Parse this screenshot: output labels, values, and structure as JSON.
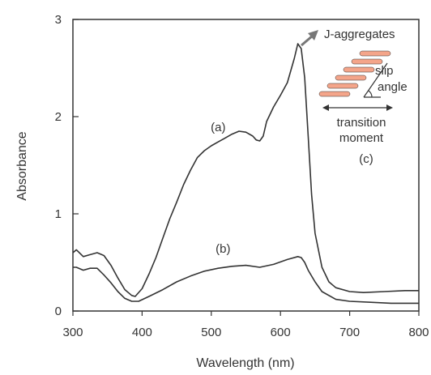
{
  "chart_data": {
    "type": "line",
    "xlabel": "Wavelength (nm)",
    "ylabel": "Absorbance",
    "xlim": [
      300,
      800
    ],
    "ylim": [
      0,
      3
    ],
    "x_ticks": [
      "300",
      "400",
      "500",
      "600",
      "700",
      "800"
    ],
    "y_ticks": [
      "0",
      "1",
      "2",
      "3"
    ],
    "grid": false,
    "series": [
      {
        "name": "(a)",
        "label_at": [
          510,
          1.85
        ],
        "x": [
          300,
          305,
          315,
          325,
          335,
          345,
          355,
          365,
          375,
          385,
          390,
          400,
          410,
          420,
          430,
          440,
          450,
          460,
          470,
          480,
          490,
          500,
          510,
          520,
          530,
          540,
          550,
          560,
          565,
          570,
          575,
          580,
          590,
          600,
          610,
          620,
          625,
          630,
          635,
          640,
          645,
          650,
          660,
          670,
          680,
          700,
          720,
          750,
          780,
          800
        ],
        "y": [
          0.6,
          0.63,
          0.56,
          0.58,
          0.6,
          0.57,
          0.47,
          0.34,
          0.22,
          0.16,
          0.15,
          0.23,
          0.38,
          0.55,
          0.75,
          0.95,
          1.12,
          1.3,
          1.45,
          1.58,
          1.65,
          1.7,
          1.74,
          1.78,
          1.82,
          1.85,
          1.84,
          1.8,
          1.76,
          1.75,
          1.8,
          1.95,
          2.1,
          2.22,
          2.35,
          2.6,
          2.75,
          2.7,
          2.4,
          1.8,
          1.2,
          0.8,
          0.45,
          0.3,
          0.24,
          0.2,
          0.19,
          0.2,
          0.21,
          0.21
        ]
      },
      {
        "name": "(b)",
        "label_at": [
          517,
          0.6
        ],
        "x": [
          300,
          305,
          315,
          325,
          335,
          345,
          355,
          365,
          375,
          385,
          395,
          410,
          430,
          450,
          470,
          490,
          510,
          530,
          550,
          570,
          590,
          610,
          625,
          630,
          635,
          640,
          650,
          660,
          680,
          700,
          730,
          760,
          800
        ],
        "y": [
          0.45,
          0.45,
          0.42,
          0.44,
          0.44,
          0.37,
          0.29,
          0.2,
          0.13,
          0.1,
          0.1,
          0.15,
          0.22,
          0.3,
          0.36,
          0.41,
          0.44,
          0.46,
          0.47,
          0.45,
          0.48,
          0.53,
          0.56,
          0.55,
          0.5,
          0.42,
          0.3,
          0.2,
          0.12,
          0.1,
          0.09,
          0.08,
          0.08
        ]
      }
    ],
    "inset": {
      "arrow_label": "J-aggregates",
      "slip_label_1": "slip",
      "slip_label_2": "angle",
      "moment_label_1": "transition",
      "moment_label_2": "moment",
      "panel_label": "(c)",
      "molecule_color": "#f4a58a",
      "molecule_count": 6
    },
    "colors": {
      "line": "#333333",
      "axis": "#333333",
      "arrow": "#777777"
    }
  }
}
